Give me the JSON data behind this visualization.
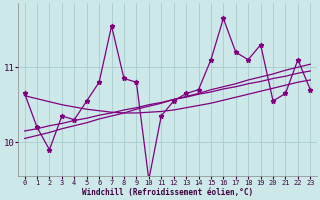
{
  "xlabel": "Windchill (Refroidissement éolien,°C)",
  "bg_color": "#cce8e8",
  "line_color": "#800080",
  "grid_color": "#aacccc",
  "x": [
    0,
    1,
    2,
    3,
    4,
    5,
    6,
    7,
    8,
    9,
    10,
    11,
    12,
    13,
    14,
    15,
    16,
    17,
    18,
    19,
    20,
    21,
    22,
    23
  ],
  "y_main": [
    10.65,
    10.2,
    9.9,
    10.35,
    10.3,
    10.55,
    10.8,
    11.55,
    10.85,
    10.8,
    9.5,
    10.35,
    10.55,
    10.65,
    10.7,
    11.1,
    11.65,
    11.2,
    11.1,
    11.3,
    10.55,
    10.65,
    11.1,
    10.7
  ],
  "y_trend1": [
    10.62,
    10.58,
    10.54,
    10.5,
    10.47,
    10.44,
    10.42,
    10.4,
    10.39,
    10.39,
    10.4,
    10.41,
    10.43,
    10.46,
    10.49,
    10.52,
    10.56,
    10.6,
    10.64,
    10.68,
    10.72,
    10.76,
    10.8,
    10.83
  ],
  "y_trend2": [
    10.15,
    10.18,
    10.22,
    10.25,
    10.29,
    10.32,
    10.36,
    10.39,
    10.43,
    10.46,
    10.5,
    10.53,
    10.57,
    10.6,
    10.64,
    10.67,
    10.71,
    10.74,
    10.78,
    10.81,
    10.85,
    10.88,
    10.92,
    10.95
  ],
  "y_trend3": [
    10.05,
    10.09,
    10.13,
    10.18,
    10.22,
    10.26,
    10.31,
    10.35,
    10.39,
    10.44,
    10.48,
    10.52,
    10.57,
    10.61,
    10.65,
    10.7,
    10.74,
    10.78,
    10.83,
    10.87,
    10.91,
    10.96,
    11.0,
    11.04
  ],
  "ylim": [
    9.55,
    11.85
  ],
  "yticks": [
    10,
    11
  ],
  "xticks": [
    0,
    1,
    2,
    3,
    4,
    5,
    6,
    7,
    8,
    9,
    10,
    11,
    12,
    13,
    14,
    15,
    16,
    17,
    18,
    19,
    20,
    21,
    22,
    23
  ]
}
